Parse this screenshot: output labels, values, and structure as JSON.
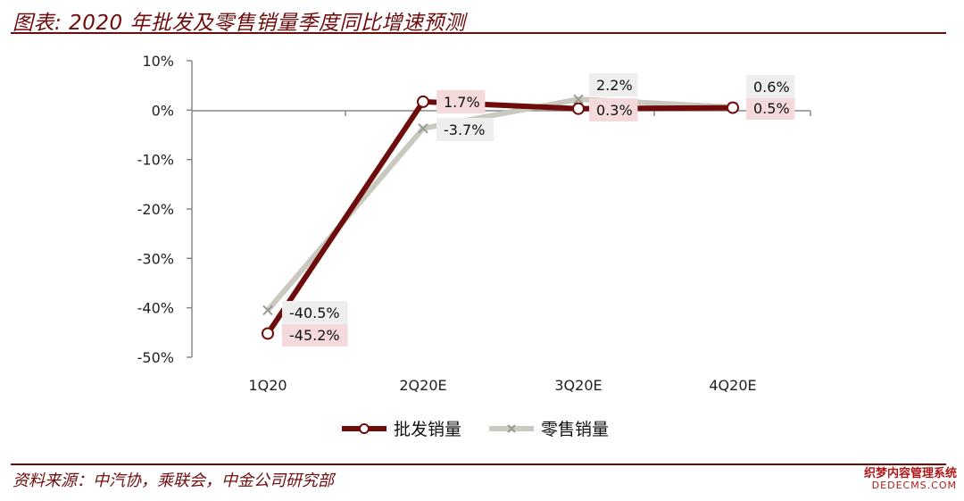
{
  "title": "图表: 2020 年批发及零售销量季度同比增速预测",
  "source": "资料来源：中汽协，乘联会，中金公司研究部",
  "watermark": {
    "line1": "织梦内容管理系统",
    "line2": "DEDECMS.COM"
  },
  "colors": {
    "wholesale": "#6e0c0c",
    "retail": "#c9c9c0",
    "wholesale_label_bg": "#f4dada",
    "retail_label_bg": "#eeeeee"
  },
  "chart_data": {
    "type": "line",
    "categories": [
      "1Q20",
      "2Q20E",
      "3Q20E",
      "4Q20E"
    ],
    "ylim": [
      -50,
      10
    ],
    "yticks": [
      10,
      0,
      -10,
      -20,
      -30,
      -40,
      -50
    ],
    "ytick_labels": [
      "10%",
      "0%",
      "-10%",
      "-20%",
      "-30%",
      "-40%",
      "-50%"
    ],
    "series": [
      {
        "name": "批发销量",
        "values": [
          -45.2,
          1.7,
          0.3,
          0.5
        ],
        "labels": [
          "-45.2%",
          "1.7%",
          "0.3%",
          "0.5%"
        ],
        "marker": "circle"
      },
      {
        "name": "零售销量",
        "values": [
          -40.5,
          -3.7,
          2.2,
          0.6
        ],
        "labels": [
          "-40.5%",
          "-3.7%",
          "2.2%",
          "0.6%"
        ],
        "marker": "x"
      }
    ],
    "legend": "bottom"
  }
}
